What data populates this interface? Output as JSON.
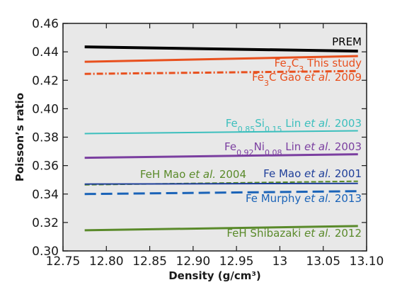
{
  "chart_data": {
    "type": "line",
    "xlabel": "Density (g/cm³)",
    "ylabel": "Poisson’s ratio",
    "xlim": [
      12.75,
      13.1
    ],
    "ylim": [
      0.3,
      0.46
    ],
    "xticks": [
      12.75,
      12.8,
      12.85,
      12.9,
      12.95,
      13.0,
      13.05,
      13.1
    ],
    "xtick_labels": [
      "12.75",
      "12.80",
      "12.85",
      "12.90",
      "12.95",
      "13",
      "13.05",
      "13.10"
    ],
    "yticks": [
      0.3,
      0.32,
      0.34,
      0.36,
      0.38,
      0.4,
      0.42,
      0.44,
      0.46
    ],
    "ytick_labels": [
      "0.30",
      "0.32",
      "0.34",
      "0.36",
      "0.38",
      "0.40",
      "0.42",
      "0.44",
      "0.46"
    ],
    "grid": false,
    "background": "#e8e8e8",
    "series": [
      {
        "name": "PREM",
        "label_parts": [
          {
            "t": "PREM"
          }
        ],
        "color": "#000000",
        "dash": "solid",
        "width": 4,
        "x": [
          12.775,
          13.09
        ],
        "y": [
          0.4435,
          0.4405
        ]
      },
      {
        "name": "Fe7C3 This study",
        "label_parts": [
          {
            "t": "Fe"
          },
          {
            "t": "7",
            "sub": true
          },
          {
            "t": "C"
          },
          {
            "t": "3",
            "sub": true
          },
          {
            "t": " This study"
          }
        ],
        "color": "#e8501e",
        "dash": "solid",
        "width": 3,
        "x": [
          12.775,
          13.09
        ],
        "y": [
          0.433,
          0.437
        ]
      },
      {
        "name": "Fe3C Gao et al. 2009",
        "label_parts": [
          {
            "t": "Fe"
          },
          {
            "t": "3",
            "sub": true
          },
          {
            "t": "C Gao "
          },
          {
            "t": "et al.",
            "it": true
          },
          {
            "t": " 2009"
          }
        ],
        "color": "#e8501e",
        "dash": "dashdot",
        "width": 3,
        "x": [
          12.775,
          13.09
        ],
        "y": [
          0.4245,
          0.4265
        ]
      },
      {
        "name": "Fe0.85Si0.15 Lin et al. 2003",
        "label_parts": [
          {
            "t": "Fe"
          },
          {
            "t": "0.85",
            "sub": true
          },
          {
            "t": "Si"
          },
          {
            "t": "0.15",
            "sub": true
          },
          {
            "t": " Lin "
          },
          {
            "t": "et al.",
            "it": true
          },
          {
            "t": " 2003"
          }
        ],
        "color": "#3cbfbd",
        "dash": "solid",
        "width": 2,
        "x": [
          12.775,
          13.09
        ],
        "y": [
          0.3825,
          0.3845
        ]
      },
      {
        "name": "Fe0.92Ni0.08 Lin et al. 2003",
        "label_parts": [
          {
            "t": "Fe"
          },
          {
            "t": "0.92",
            "sub": true
          },
          {
            "t": "Ni"
          },
          {
            "t": "0.08",
            "sub": true
          },
          {
            "t": " Lin "
          },
          {
            "t": "et al.",
            "it": true
          },
          {
            "t": " 2003"
          }
        ],
        "color": "#7b3fa0",
        "dash": "solid",
        "width": 3,
        "x": [
          12.775,
          13.09
        ],
        "y": [
          0.3655,
          0.368
        ]
      },
      {
        "name": "FeH Mao et al. 2004",
        "label_parts": [
          {
            "t": "FeH Mao "
          },
          {
            "t": "et al.",
            "it": true
          },
          {
            "t": " 2004"
          }
        ],
        "color": "#5a8a2a",
        "dash": "dashed",
        "width": 2,
        "x": [
          12.775,
          13.09
        ],
        "y": [
          0.3465,
          0.349
        ]
      },
      {
        "name": "Fe Mao et al. 2001",
        "label_parts": [
          {
            "t": "Fe Mao "
          },
          {
            "t": "et al.",
            "it": true
          },
          {
            "t": " 2001"
          }
        ],
        "color": "#1f3f9a",
        "dash": "solid",
        "width": 2,
        "x": [
          12.775,
          13.09
        ],
        "y": [
          0.347,
          0.3475
        ]
      },
      {
        "name": "Fe Murphy et al. 2013",
        "label_parts": [
          {
            "t": "Fe Murphy "
          },
          {
            "t": "et al.",
            "it": true
          },
          {
            "t": " 2013"
          }
        ],
        "color": "#1a63b8",
        "dash": "longdash",
        "width": 3,
        "x": [
          12.775,
          13.09
        ],
        "y": [
          0.34,
          0.342
        ]
      },
      {
        "name": "FeH Shibazaki et al. 2012",
        "label_parts": [
          {
            "t": "FeH Shibazaki "
          },
          {
            "t": "et al.",
            "it": true
          },
          {
            "t": " 2012"
          }
        ],
        "color": "#5a8a2a",
        "dash": "solid",
        "width": 3,
        "x": [
          12.775,
          13.09
        ],
        "y": [
          0.3145,
          0.3175
        ]
      }
    ]
  }
}
